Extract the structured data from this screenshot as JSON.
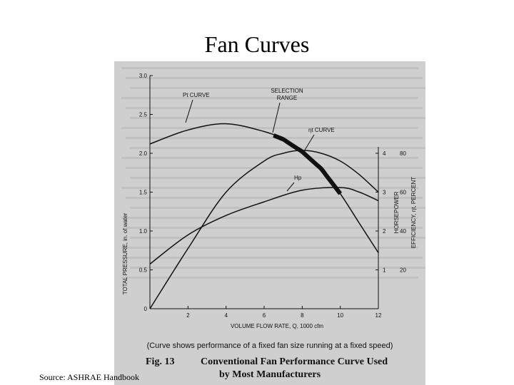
{
  "slide": {
    "title": "Fan Curves",
    "source": "Source: ASHRAE Handbook"
  },
  "figure": {
    "note": "(Curve shows performance of a fixed fan size running at a fixed speed)",
    "fig_label": "Fig. 13",
    "caption_line1": "Conventional Fan Performance Curve Used",
    "caption_line2": "by Most Manufacturers"
  },
  "chart_data": {
    "type": "line",
    "xlabel": "VOLUME FLOW RATE, Q, 1000 cfm",
    "ylabel": "TOTAL PRESSURE, in. of water",
    "y2label": "HORSEPOWER",
    "y3label": "EFFICIENCY, ηt, PERCENT",
    "xlim": [
      0,
      12
    ],
    "ylim": [
      0,
      3.0
    ],
    "y2lim": [
      0,
      6
    ],
    "y3lim": [
      0,
      120
    ],
    "x_ticks": [
      "2",
      "4",
      "6",
      "8",
      "10",
      "12"
    ],
    "y_ticks": [
      "0",
      "0.5",
      "1.0",
      "1.5",
      "2.0",
      "2.5",
      "3.0"
    ],
    "y2_ticks": [
      "1",
      "2",
      "3",
      "4"
    ],
    "y3_ticks": [
      "20",
      "40",
      "60",
      "80"
    ],
    "series": [
      {
        "name": "Pt CURVE",
        "axis": "pressure",
        "x": [
          0,
          2,
          4,
          6,
          7,
          8,
          9,
          10,
          11,
          12
        ],
        "y": [
          2.12,
          2.3,
          2.38,
          2.28,
          2.18,
          2.02,
          1.8,
          1.48,
          1.1,
          0.72
        ]
      },
      {
        "name": "ηt CURVE",
        "axis": "efficiency",
        "x": [
          0,
          2,
          4,
          6,
          7,
          8,
          9,
          10,
          11,
          12
        ],
        "y": [
          0,
          31,
          60,
          76,
          80,
          81.5,
          80,
          76,
          69,
          60
        ]
      },
      {
        "name": "Hp",
        "axis": "horsepower",
        "x": [
          0,
          2,
          4,
          6,
          8,
          10,
          11,
          12
        ],
        "y": [
          1.15,
          1.9,
          2.4,
          2.75,
          3.05,
          3.12,
          3.0,
          2.78
        ]
      }
    ],
    "selection_range": {
      "label_line1": "SELECTION",
      "label_line2": "RANGE",
      "x": [
        6.5,
        10
      ]
    },
    "annotations": {
      "pt": "Pt CURVE",
      "eta": "ηt CURVE",
      "hp": "Hp"
    },
    "colors": {
      "background": "#cfcfcf",
      "ink": "#111111"
    }
  }
}
